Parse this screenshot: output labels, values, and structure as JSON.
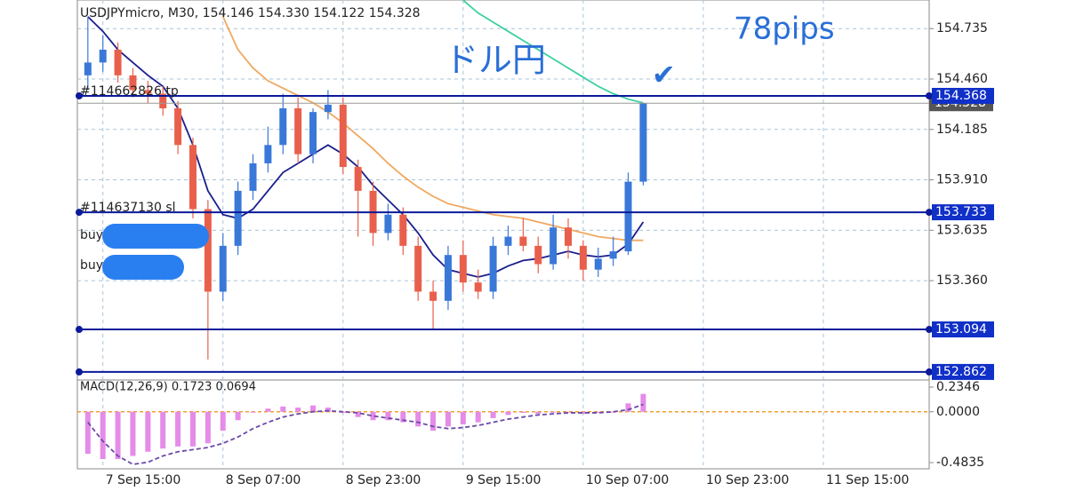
{
  "header": "USDJPYmicro, M30, 154.146 154.330 154.122 154.328",
  "annotations": {
    "pair": "ドル円",
    "pips": "78pips",
    "check": "✔"
  },
  "chart_data": {
    "type": "candlestick",
    "x": [
      "7 Sep 13:00",
      "7 Sep 15:00",
      "7 Sep 17:00",
      "7 Sep 19:00",
      "7 Sep 21:00",
      "7 Sep 23:00",
      "8 Sep 01:00",
      "8 Sep 03:00",
      "8 Sep 05:00",
      "8 Sep 07:00",
      "8 Sep 09:00",
      "8 Sep 11:00",
      "8 Sep 13:00",
      "8 Sep 15:00",
      "8 Sep 17:00",
      "8 Sep 19:00",
      "8 Sep 21:00",
      "8 Sep 23:00",
      "9 Sep 01:00",
      "9 Sep 03:00",
      "9 Sep 05:00",
      "9 Sep 07:00",
      "9 Sep 09:00",
      "9 Sep 11:00",
      "9 Sep 13:00",
      "9 Sep 15:00",
      "9 Sep 17:00",
      "9 Sep 19:00",
      "9 Sep 21:00",
      "9 Sep 23:00",
      "10 Sep 01:00",
      "10 Sep 03:00",
      "10 Sep 05:00",
      "10 Sep 07:00",
      "10 Sep 09:00",
      "10 Sep 11:00",
      "10 Sep 13:00",
      "10 Sep 15:00"
    ],
    "open": [
      154.48,
      154.55,
      154.62,
      154.48,
      154.4,
      154.38,
      154.3,
      154.1,
      153.75,
      153.3,
      153.55,
      153.85,
      154.0,
      154.1,
      154.3,
      154.05,
      154.28,
      154.32,
      153.98,
      153.85,
      153.62,
      153.72,
      153.55,
      153.3,
      153.25,
      153.5,
      153.35,
      153.3,
      153.55,
      153.6,
      153.55,
      153.45,
      153.65,
      153.55,
      153.42,
      153.48,
      153.52,
      153.9
    ],
    "high": [
      154.8,
      154.7,
      154.66,
      154.52,
      154.45,
      154.42,
      154.34,
      154.14,
      153.8,
      153.62,
      153.9,
      154.05,
      154.2,
      154.38,
      154.36,
      154.3,
      154.4,
      154.36,
      154.02,
      153.9,
      153.78,
      153.76,
      153.6,
      153.36,
      153.55,
      153.58,
      153.42,
      153.6,
      153.66,
      153.7,
      153.6,
      153.72,
      153.7,
      153.58,
      153.54,
      153.6,
      153.95,
      154.33
    ],
    "low": [
      154.4,
      154.5,
      154.44,
      154.36,
      154.33,
      154.26,
      154.05,
      153.7,
      152.93,
      153.25,
      153.5,
      153.8,
      153.95,
      154.05,
      154.0,
      154.0,
      154.24,
      153.94,
      153.6,
      153.55,
      153.58,
      153.5,
      153.25,
      153.09,
      153.2,
      153.3,
      153.26,
      153.26,
      153.5,
      153.52,
      153.4,
      153.42,
      153.48,
      153.36,
      153.38,
      153.44,
      153.5,
      153.88
    ],
    "close": [
      154.55,
      154.62,
      154.48,
      154.4,
      154.38,
      154.3,
      154.1,
      153.75,
      153.3,
      153.55,
      153.85,
      154.0,
      154.1,
      154.3,
      154.05,
      154.28,
      154.32,
      153.98,
      153.85,
      153.62,
      153.72,
      153.55,
      153.3,
      153.25,
      153.5,
      153.35,
      153.3,
      153.55,
      153.6,
      153.55,
      153.45,
      153.65,
      153.55,
      153.42,
      153.48,
      153.52,
      153.9,
      154.328
    ],
    "up_color": "#3a78d8",
    "down_color": "#e8604c",
    "moving_averages": [
      {
        "color": "#f0a860",
        "values": [
          null,
          null,
          null,
          null,
          null,
          null,
          null,
          null,
          null,
          154.8,
          154.62,
          154.52,
          154.45,
          154.41,
          154.37,
          154.33,
          154.28,
          154.22,
          154.15,
          154.08,
          154.0,
          153.93,
          153.87,
          153.82,
          153.78,
          153.76,
          153.74,
          153.72,
          153.71,
          153.7,
          153.68,
          153.66,
          153.64,
          153.62,
          153.6,
          153.59,
          153.58,
          153.58
        ]
      },
      {
        "color": "#1a1f8c",
        "values": [
          154.8,
          154.72,
          154.62,
          154.55,
          154.48,
          154.42,
          154.3,
          154.1,
          153.85,
          153.72,
          153.7,
          153.75,
          153.85,
          153.95,
          154.0,
          154.05,
          154.1,
          154.05,
          153.98,
          153.88,
          153.8,
          153.72,
          153.62,
          153.5,
          153.42,
          153.4,
          153.38,
          153.4,
          153.44,
          153.47,
          153.48,
          153.5,
          153.52,
          153.5,
          153.49,
          153.5,
          153.56,
          153.68
        ]
      },
      {
        "color": "#3cd0a0",
        "values": [
          null,
          null,
          null,
          null,
          null,
          null,
          null,
          null,
          null,
          null,
          null,
          null,
          null,
          null,
          null,
          null,
          null,
          null,
          null,
          null,
          null,
          null,
          null,
          null,
          null,
          154.89,
          154.82,
          154.77,
          154.72,
          154.67,
          154.62,
          154.57,
          154.52,
          154.47,
          154.42,
          154.38,
          154.35,
          154.33
        ]
      }
    ],
    "ylim": [
      152.818,
      154.891
    ],
    "yticks": [
      154.735,
      {
        "value": 154.46,
        "label": "154.460"
      },
      154.185,
      {
        "value": 153.91,
        "label": "153.910"
      },
      153.635,
      {
        "value": 153.36,
        "label": "153.360"
      }
    ],
    "xlim": [
      "7 Sep 11:36",
      "12 Sep 05:06"
    ],
    "xticks": [
      "7 Sep 15:00",
      "8 Sep 07:00",
      "8 Sep 23:00",
      "9 Sep 15:00",
      "10 Sep 07:00",
      "10 Sep 23:00",
      "11 Sep 15:00"
    ],
    "grid": true,
    "current_price": 154.328,
    "levels": [
      {
        "value": 154.368,
        "tag": "#114662826 tp"
      },
      {
        "value": 153.733,
        "tag": "#114637130 sl"
      },
      {
        "value": 153.094
      },
      {
        "value": 152.862
      }
    ],
    "level_color": "#0a1a9a",
    "orders": [
      "buy",
      "buy"
    ],
    "macd": {
      "title": "MACD(12,26,9) 0.1723 0.0694",
      "histogram": [
        -0.4,
        -0.45,
        -0.45,
        -0.42,
        -0.38,
        -0.35,
        -0.33,
        -0.33,
        -0.3,
        -0.18,
        -0.08,
        0.0,
        0.03,
        0.05,
        0.04,
        0.06,
        0.04,
        -0.01,
        -0.05,
        -0.08,
        -0.08,
        -0.1,
        -0.14,
        -0.18,
        -0.14,
        -0.12,
        -0.1,
        -0.06,
        -0.03,
        -0.01,
        -0.02,
        0.0,
        0.0,
        -0.02,
        -0.01,
        0.0,
        0.08,
        0.17
      ],
      "signal": [
        -0.1,
        -0.28,
        -0.42,
        -0.5,
        -0.48,
        -0.42,
        -0.38,
        -0.36,
        -0.34,
        -0.3,
        -0.24,
        -0.16,
        -0.1,
        -0.05,
        -0.02,
        0.0,
        0.01,
        0.0,
        -0.01,
        -0.04,
        -0.06,
        -0.08,
        -0.1,
        -0.14,
        -0.16,
        -0.15,
        -0.13,
        -0.1,
        -0.07,
        -0.05,
        -0.03,
        -0.02,
        -0.01,
        -0.01,
        -0.01,
        0.0,
        0.02,
        0.07
      ],
      "histogram_color": "#e58be8",
      "signal_color": "#6a4aa8",
      "zero_color": "#f0a030",
      "ylim": [
        -0.5426,
        0.3022
      ],
      "yticks": [
        0.2346,
        {
          "value": 0,
          "label": "0.0000"
        },
        -0.4835
      ]
    }
  }
}
